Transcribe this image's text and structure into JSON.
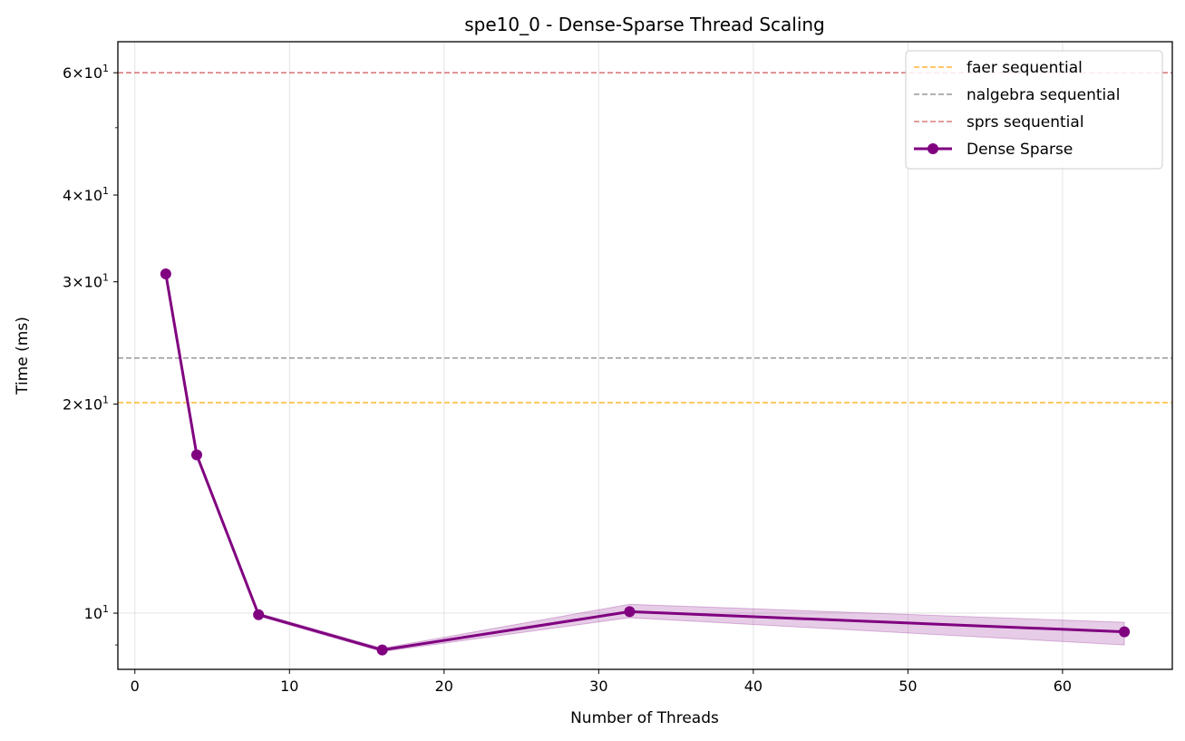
{
  "chart_data": {
    "type": "line",
    "title": "spe10_0 - Dense-Sparse Thread Scaling",
    "xlabel": "Number of Threads",
    "ylabel": "Time (ms)",
    "xlim": [
      -1.1,
      67.1
    ],
    "ylim": [
      8.3,
      66.5
    ],
    "yscale": "log",
    "x_ticks": [
      0,
      10,
      20,
      30,
      40,
      50,
      60
    ],
    "x_tick_labels": [
      "0",
      "10",
      "20",
      "30",
      "40",
      "50",
      "60"
    ],
    "y_ticks": [
      {
        "value": 10,
        "base": "10",
        "exp": "1"
      },
      {
        "value": 20,
        "mant": "2",
        "base": "10",
        "exp": "1"
      },
      {
        "value": 30,
        "mant": "3",
        "base": "10",
        "exp": "1"
      },
      {
        "value": 40,
        "mant": "4",
        "base": "10",
        "exp": "1"
      },
      {
        "value": 60,
        "mant": "6",
        "base": "10",
        "exp": "1"
      }
    ],
    "y_minor_ticks": [
      9,
      50
    ],
    "grid": true,
    "legend_position": "top-right",
    "reference_lines": [
      {
        "name": "faer sequential",
        "value": 20.1,
        "color": "#ffa500"
      },
      {
        "name": "nalgebra sequential",
        "value": 23.3,
        "color": "#808080"
      },
      {
        "name": "sprs sequential",
        "value": 60.0,
        "color": "#cd5c5c"
      }
    ],
    "series": [
      {
        "name": "Dense Sparse",
        "color": "#800080",
        "x": [
          2,
          4,
          8,
          16,
          32,
          64
        ],
        "y": [
          30.8,
          16.9,
          9.95,
          8.85,
          10.05,
          9.4
        ],
        "y_low": [
          30.6,
          16.8,
          9.9,
          8.8,
          9.85,
          9.0
        ],
        "y_high": [
          31.0,
          17.0,
          10.0,
          8.9,
          10.3,
          9.7
        ]
      }
    ]
  }
}
